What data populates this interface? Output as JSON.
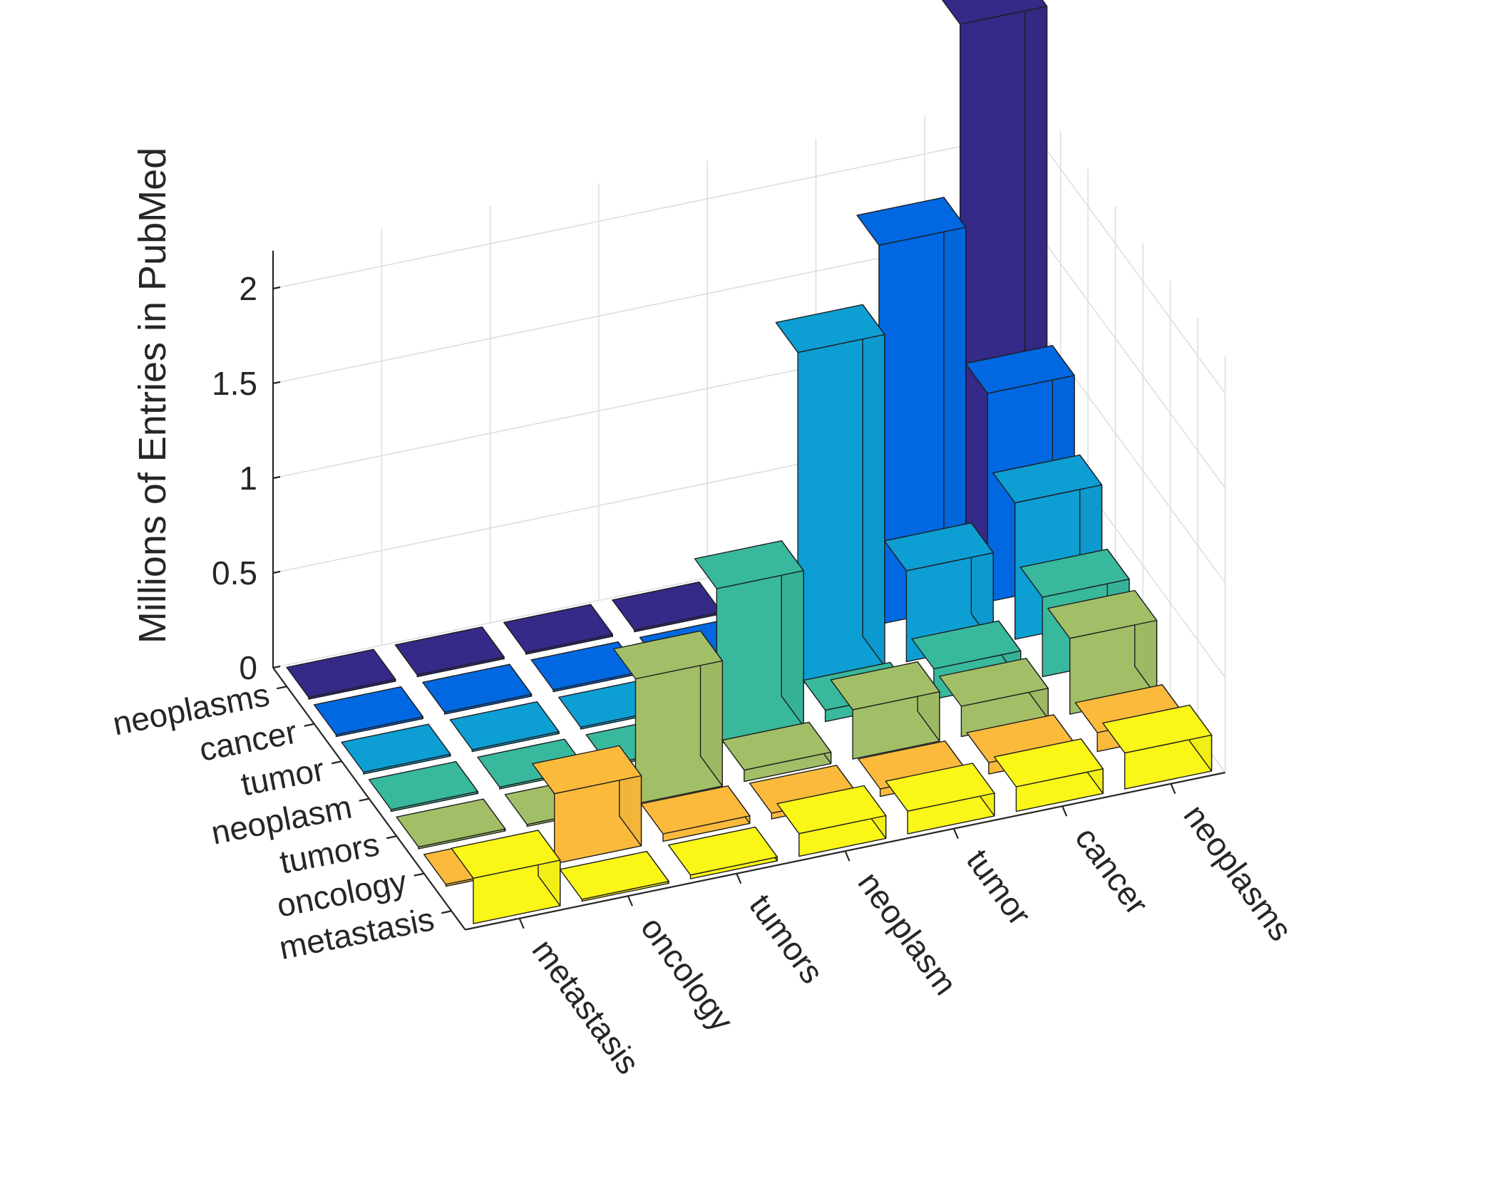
{
  "chart_data": {
    "type": "bar3d",
    "ylabel": "Millions of Entries in PubMed",
    "zlim": [
      0,
      2.2
    ],
    "z_ticks": [
      0,
      0.5,
      1,
      1.5,
      2
    ],
    "z_tick_labels": [
      "0",
      "0.5",
      "1",
      "1.5",
      "2"
    ],
    "row_labels": [
      "neoplasms",
      "cancer",
      "tumor",
      "neoplasm",
      "tumors",
      "oncology",
      "metastasis"
    ],
    "col_labels": [
      "metastasis",
      "oncology",
      "tumors",
      "neoplasm",
      "tumor",
      "cancer",
      "neoplasms"
    ],
    "row_colors": [
      "#352A87",
      "#0268E1",
      "#0D9ED4",
      "#38B89D",
      "#A2BF67",
      "#FBBA3C",
      "#F9F618"
    ],
    "values": [
      [
        0.01,
        0.01,
        0.01,
        0.01,
        0.01,
        0.01,
        2.85
      ],
      [
        0.01,
        0.01,
        0.01,
        0.01,
        0.01,
        2.0,
        1.1
      ],
      [
        0.01,
        0.01,
        0.01,
        0.01,
        1.75,
        0.48,
        0.72
      ],
      [
        0.01,
        0.01,
        0.01,
        0.82,
        0.06,
        0.16,
        0.42
      ],
      [
        0.01,
        0.01,
        0.66,
        0.06,
        0.26,
        0.16,
        0.4
      ],
      [
        0.01,
        0.37,
        0.04,
        0.03,
        0.04,
        0.06,
        0.1
      ],
      [
        0.24,
        0.01,
        0.02,
        0.12,
        0.12,
        0.13,
        0.19
      ]
    ]
  }
}
